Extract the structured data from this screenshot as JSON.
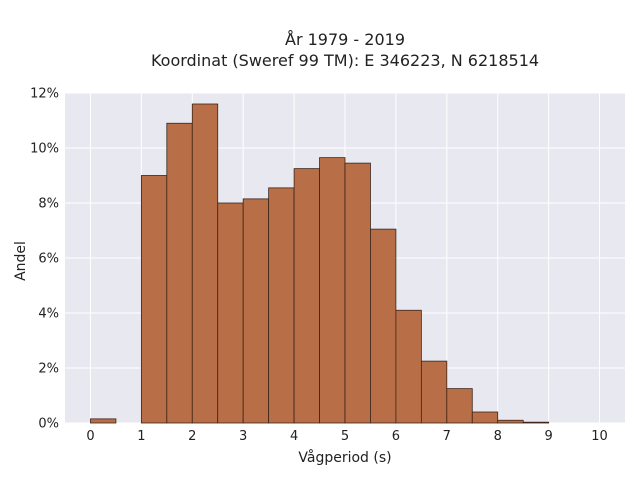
{
  "chart_data": {
    "type": "bar",
    "title": "År 1979 - 2019",
    "subtitle": "Koordinat (Sweref 99 TM): E 346223, N 6218514",
    "xlabel": "Vågperiod (s)",
    "ylabel": "Andel",
    "xlim": [
      -0.5,
      10.5
    ],
    "ylim": [
      0,
      12
    ],
    "x_ticks": [
      0,
      1,
      2,
      3,
      4,
      5,
      6,
      7,
      8,
      9,
      10
    ],
    "y_ticks": [
      0,
      2,
      4,
      6,
      8,
      10,
      12
    ],
    "y_tick_suffix": "%",
    "bin_width": 0.5,
    "bins": [
      {
        "x0": 0.0,
        "value": 0.15
      },
      {
        "x0": 1.0,
        "value": 9.0
      },
      {
        "x0": 1.5,
        "value": 10.9
      },
      {
        "x0": 2.0,
        "value": 11.6
      },
      {
        "x0": 2.5,
        "value": 8.0
      },
      {
        "x0": 3.0,
        "value": 8.15
      },
      {
        "x0": 3.5,
        "value": 8.55
      },
      {
        "x0": 4.0,
        "value": 9.25
      },
      {
        "x0": 4.5,
        "value": 9.65
      },
      {
        "x0": 5.0,
        "value": 9.45
      },
      {
        "x0": 5.5,
        "value": 7.05
      },
      {
        "x0": 6.0,
        "value": 4.1
      },
      {
        "x0": 6.5,
        "value": 2.25
      },
      {
        "x0": 7.0,
        "value": 1.25
      },
      {
        "x0": 7.5,
        "value": 0.4
      },
      {
        "x0": 8.0,
        "value": 0.1
      },
      {
        "x0": 8.5,
        "value": 0.03
      }
    ],
    "grid": true,
    "colors": {
      "bar_fill": "#b86f47",
      "bar_edge": "#3d2418",
      "plot_bg": "#e8e8f0",
      "grid": "#ffffff"
    }
  }
}
